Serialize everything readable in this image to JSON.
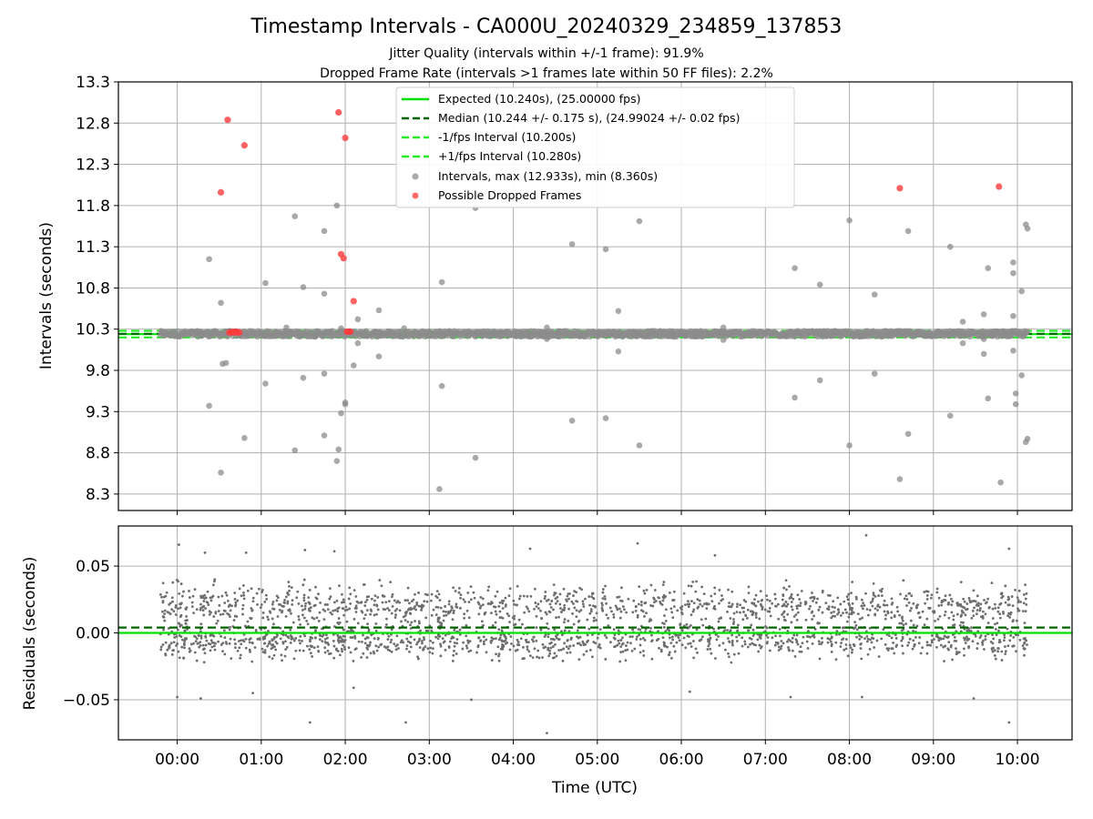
{
  "title": "Timestamp Intervals - CA000U_20240329_234859_137853",
  "subtitle1": "Jitter Quality (intervals within +/-1 frame): 91.9%",
  "subtitle2": "Dropped Frame Rate (intervals >1 frames late within 50 FF files): 2.2%",
  "colors": {
    "expected": "#00e000",
    "median": "#006400",
    "fps_band": "#22ee22",
    "intervals": "#8c8c8c",
    "dropped": "#ff3b3b",
    "residual": "#6e6e6e",
    "grid": "#b0b0b0"
  },
  "chart_data": [
    {
      "type": "scatter",
      "name": "intervals",
      "ylabel": "Intervals (seconds)",
      "ylim": [
        8.1,
        13.3
      ],
      "yticks": [
        8.3,
        8.8,
        9.3,
        9.8,
        10.3,
        10.8,
        11.3,
        11.8,
        12.3,
        12.8,
        13.3
      ],
      "ytick_labels": [
        "8.3",
        "8.8",
        "9.3",
        "9.8",
        "10.3",
        "10.8",
        "11.3",
        "11.8",
        "12.3",
        "12.8",
        "13.3"
      ],
      "grid": true,
      "legend_position": "top-center",
      "lines": [
        {
          "label": "Expected (10.240s), (25.00000 fps)",
          "y": 10.24,
          "style": "solid",
          "color_key": "expected"
        },
        {
          "label": "Median (10.244 +/- 0.175 s), (24.99024 +/- 0.02 fps)",
          "y": 10.244,
          "style": "dashed",
          "color_key": "median"
        },
        {
          "label": "-1/fps Interval (10.200s)",
          "y": 10.2,
          "style": "dashed",
          "color_key": "fps_band"
        },
        {
          "label": "+1/fps Interval (10.280s)",
          "y": 10.28,
          "style": "dashed",
          "color_key": "fps_band"
        }
      ],
      "series": [
        {
          "name": "Intervals, max (12.933s), min (8.360s)",
          "color_key": "intervals",
          "points": [
            [
              0.38,
              11.15
            ],
            [
              0.38,
              9.37
            ],
            [
              0.52,
              10.62
            ],
            [
              0.54,
              9.88
            ],
            [
              0.58,
              9.89
            ],
            [
              0.52,
              8.56
            ],
            [
              0.8,
              8.98
            ],
            [
              1.05,
              10.86
            ],
            [
              1.05,
              9.64
            ],
            [
              1.4,
              11.67
            ],
            [
              1.5,
              10.81
            ],
            [
              1.5,
              9.71
            ],
            [
              1.4,
              8.83
            ],
            [
              1.75,
              11.49
            ],
            [
              1.75,
              10.73
            ],
            [
              1.75,
              9.76
            ],
            [
              1.75,
              9.01
            ],
            [
              1.9,
              11.8
            ],
            [
              1.95,
              9.28
            ],
            [
              2.0,
              9.39
            ],
            [
              2.0,
              9.41
            ],
            [
              1.9,
              8.7
            ],
            [
              1.92,
              8.84
            ],
            [
              2.15,
              10.42
            ],
            [
              2.15,
              10.13
            ],
            [
              2.1,
              9.86
            ],
            [
              2.4,
              10.53
            ],
            [
              2.4,
              9.97
            ],
            [
              3.15,
              10.87
            ],
            [
              3.15,
              9.61
            ],
            [
              3.12,
              8.36
            ],
            [
              3.55,
              11.77
            ],
            [
              3.55,
              8.74
            ],
            [
              4.7,
              11.33
            ],
            [
              4.7,
              9.19
            ],
            [
              5.1,
              11.27
            ],
            [
              5.1,
              9.22
            ],
            [
              5.25,
              10.52
            ],
            [
              5.25,
              10.03
            ],
            [
              5.5,
              11.61
            ],
            [
              5.5,
              8.89
            ],
            [
              7.35,
              11.04
            ],
            [
              7.35,
              9.47
            ],
            [
              7.65,
              10.84
            ],
            [
              7.65,
              9.68
            ],
            [
              8.0,
              11.62
            ],
            [
              8.0,
              8.89
            ],
            [
              8.3,
              10.72
            ],
            [
              8.3,
              9.76
            ],
            [
              8.6,
              8.48
            ],
            [
              8.7,
              11.49
            ],
            [
              8.7,
              9.03
            ],
            [
              9.2,
              11.3
            ],
            [
              9.2,
              9.25
            ],
            [
              9.35,
              10.39
            ],
            [
              9.35,
              10.13
            ],
            [
              9.6,
              10.48
            ],
            [
              9.6,
              10.0
            ],
            [
              9.65,
              11.04
            ],
            [
              9.65,
              9.46
            ],
            [
              9.95,
              11.11
            ],
            [
              9.95,
              10.98
            ],
            [
              9.95,
              10.46
            ],
            [
              9.95,
              10.04
            ],
            [
              9.98,
              9.52
            ],
            [
              9.98,
              9.39
            ],
            [
              10.05,
              10.76
            ],
            [
              10.05,
              9.74
            ],
            [
              10.1,
              11.57
            ],
            [
              10.12,
              11.52
            ],
            [
              10.1,
              8.93
            ],
            [
              10.12,
              8.97
            ],
            [
              9.8,
              8.44
            ],
            [
              1.3,
              10.32
            ],
            [
              2.7,
              10.31
            ],
            [
              4.4,
              10.32
            ],
            [
              6.5,
              10.32
            ],
            [
              6.5,
              10.17
            ],
            [
              9.6,
              10.18
            ],
            [
              4.4,
              10.18
            ],
            [
              1.95,
              10.31
            ]
          ]
        },
        {
          "name": "Possible Dropped Frames",
          "color_key": "dropped",
          "points": [
            [
              0.6,
              12.84
            ],
            [
              0.52,
              11.96
            ],
            [
              0.8,
              12.53
            ],
            [
              1.92,
              12.93
            ],
            [
              2.0,
              12.62
            ],
            [
              1.95,
              11.21
            ],
            [
              1.98,
              11.16
            ],
            [
              2.1,
              10.64
            ],
            [
              8.6,
              12.01
            ],
            [
              9.78,
              12.03
            ],
            [
              0.62,
              10.26
            ],
            [
              0.64,
              10.26
            ],
            [
              0.66,
              10.27
            ],
            [
              0.68,
              10.26
            ],
            [
              0.7,
              10.27
            ],
            [
              0.72,
              10.26
            ],
            [
              0.74,
              10.26
            ],
            [
              2.02,
              10.27
            ],
            [
              2.04,
              10.27
            ],
            [
              2.06,
              10.27
            ]
          ]
        }
      ]
    },
    {
      "type": "scatter",
      "name": "residuals",
      "xlabel": "Time (UTC)",
      "ylabel": "Residuals (seconds)",
      "ylim": [
        -0.08,
        0.08
      ],
      "yticks": [
        -0.05,
        0.0,
        0.05
      ],
      "ytick_labels": [
        "−0.05",
        "0.00",
        "0.05"
      ],
      "xlim": [
        -0.7,
        10.65
      ],
      "xticks": [
        0,
        1,
        2,
        3,
        4,
        5,
        6,
        7,
        8,
        9,
        10
      ],
      "xtick_labels": [
        "00:00",
        "01:00",
        "02:00",
        "03:00",
        "04:00",
        "05:00",
        "06:00",
        "07:00",
        "08:00",
        "09:00",
        "10:00"
      ],
      "x_unit": "hours after 00:00 UTC",
      "grid": true,
      "lines": [
        {
          "y": 0.0,
          "style": "solid",
          "color_key": "expected"
        },
        {
          "y": 0.004,
          "style": "dashed",
          "color_key": "median"
        }
      ],
      "residual_distribution": {
        "count": 2400,
        "x_range": [
          -0.2,
          10.12
        ],
        "band_center": 0.0,
        "band_lower": -0.022,
        "band_upper": 0.04,
        "outliers": [
          [
            0.02,
            0.066
          ],
          [
            0.33,
            0.06
          ],
          [
            0.82,
            0.06
          ],
          [
            1.52,
            0.062
          ],
          [
            1.87,
            0.061
          ],
          [
            4.2,
            0.063
          ],
          [
            5.48,
            0.067
          ],
          [
            6.4,
            0.058
          ],
          [
            8.2,
            0.073
          ],
          [
            9.9,
            0.063
          ],
          [
            1.58,
            -0.067
          ],
          [
            2.72,
            -0.067
          ],
          [
            4.4,
            -0.075
          ],
          [
            9.9,
            -0.067
          ],
          [
            0.0,
            -0.048
          ],
          [
            0.28,
            -0.049
          ],
          [
            3.5,
            -0.05
          ],
          [
            6.1,
            -0.044
          ],
          [
            7.3,
            -0.048
          ],
          [
            8.15,
            -0.048
          ],
          [
            9.48,
            -0.049
          ],
          [
            0.9,
            -0.045
          ],
          [
            2.1,
            -0.041
          ]
        ]
      }
    }
  ]
}
